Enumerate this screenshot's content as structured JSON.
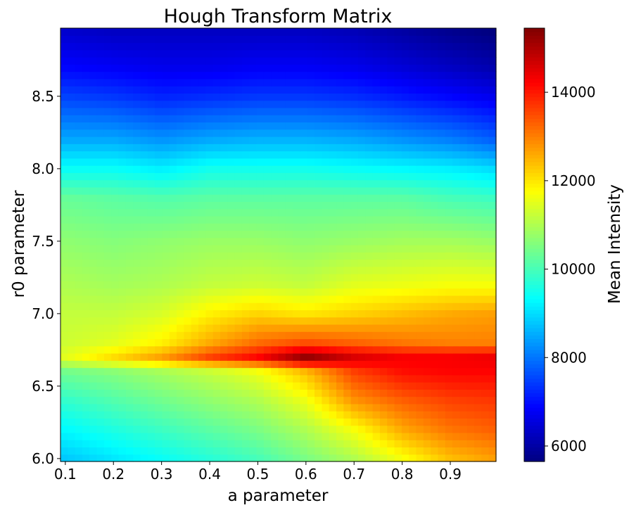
{
  "chart_data": {
    "type": "heatmap",
    "title": "Hough Transform Matrix",
    "xlabel": "a parameter",
    "ylabel": "r0 parameter",
    "colorbar_label": "Mean Intensity",
    "colormap": "jet",
    "xlim": [
      0.09,
      0.995
    ],
    "ylim": [
      5.98,
      8.97
    ],
    "x_ticks": [
      0.1,
      0.2,
      0.3,
      0.4,
      0.5,
      0.6,
      0.7,
      0.8,
      0.9
    ],
    "x_tick_labels": [
      "0.1",
      "0.2",
      "0.3",
      "0.4",
      "0.5",
      "0.6",
      "0.7",
      "0.8",
      "0.9"
    ],
    "y_ticks": [
      6.0,
      6.5,
      7.0,
      7.5,
      8.0,
      8.5
    ],
    "y_tick_labels": [
      "6.0",
      "6.5",
      "7.0",
      "7.5",
      "8.0",
      "8.5"
    ],
    "color_range": [
      5650,
      15450
    ],
    "colorbar_ticks": [
      6000,
      8000,
      10000,
      12000,
      14000
    ],
    "colorbar_tick_labels": [
      "6000",
      "8000",
      "10000",
      "12000",
      "14000"
    ],
    "x": [
      0.1,
      0.2,
      0.3,
      0.4,
      0.5,
      0.6,
      0.7,
      0.8,
      0.9,
      0.99
    ],
    "y": [
      6.0,
      6.2,
      6.4,
      6.6,
      6.7,
      6.8,
      7.0,
      7.2,
      7.5,
      7.8,
      8.0,
      8.2,
      8.5,
      8.7,
      8.95
    ],
    "z": [
      [
        8800,
        9100,
        9400,
        9700,
        10000,
        10500,
        11000,
        11700,
        12400,
        12700
      ],
      [
        9300,
        9600,
        9900,
        10200,
        10500,
        11000,
        11700,
        12600,
        13100,
        13300
      ],
      [
        9800,
        10100,
        10400,
        10700,
        11000,
        11600,
        12800,
        13300,
        13600,
        13700
      ],
      [
        10400,
        10600,
        10900,
        11200,
        11600,
        12400,
        13600,
        14100,
        14200,
        14200
      ],
      [
        11500,
        12100,
        12700,
        13600,
        14200,
        15300,
        14600,
        14300,
        14300,
        14400
      ],
      [
        11300,
        11500,
        11900,
        12600,
        13200,
        13500,
        13300,
        13100,
        13000,
        13000
      ],
      [
        11200,
        11200,
        11400,
        11900,
        12200,
        12000,
        12200,
        12400,
        12600,
        12700
      ],
      [
        11000,
        10900,
        11000,
        11200,
        11300,
        11200,
        11500,
        11600,
        11700,
        11700
      ],
      [
        10700,
        10600,
        10700,
        10800,
        10800,
        10700,
        10800,
        10900,
        10900,
        10800
      ],
      [
        10300,
        10200,
        10100,
        10200,
        10200,
        10200,
        10200,
        10200,
        10000,
        9900
      ],
      [
        9400,
        9400,
        9200,
        9500,
        9500,
        9500,
        9400,
        9300,
        9200,
        9000
      ],
      [
        8500,
        8500,
        8300,
        8500,
        8600,
        8600,
        8500,
        8300,
        8100,
        7800
      ],
      [
        7500,
        7400,
        7200,
        7300,
        7400,
        7400,
        7300,
        7100,
        6900,
        6700
      ],
      [
        6900,
        6800,
        6700,
        6700,
        6800,
        6800,
        6700,
        6500,
        6300,
        6100
      ],
      [
        6400,
        6300,
        6300,
        6300,
        6300,
        6300,
        6200,
        6000,
        5800,
        5650
      ]
    ]
  }
}
